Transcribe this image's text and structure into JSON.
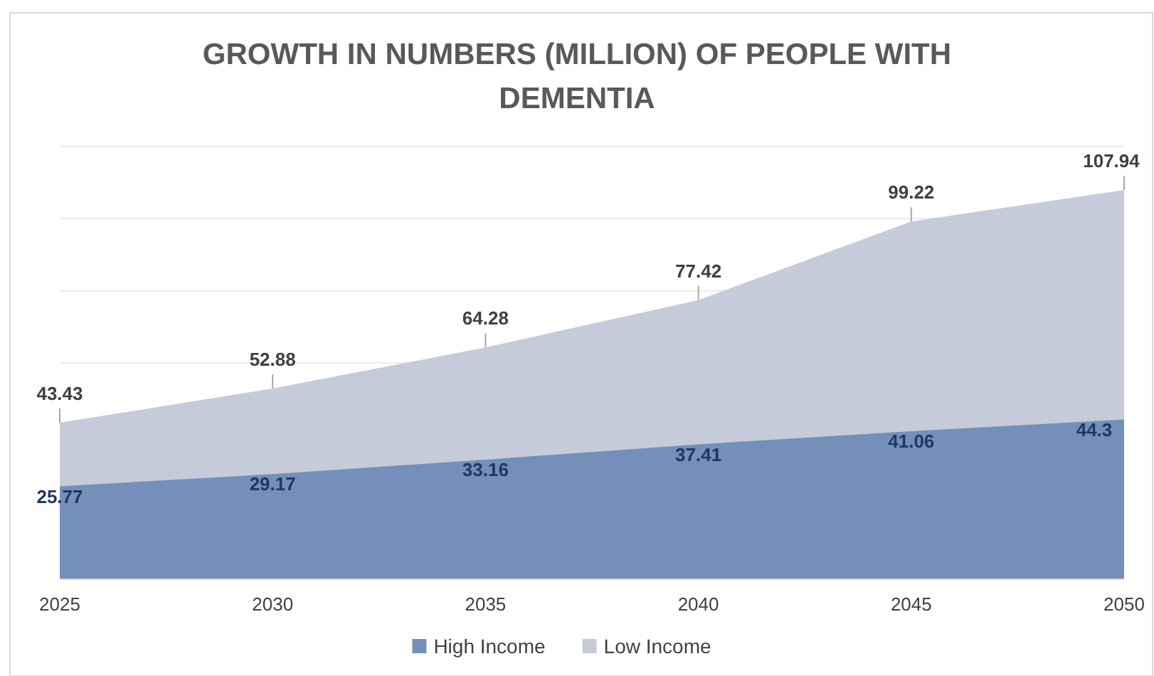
{
  "chart_data": {
    "type": "area",
    "title": "GROWTH IN NUMBERS (MILLION) OF PEOPLE WITH DEMENTIA",
    "categories": [
      "2025",
      "2030",
      "2035",
      "2040",
      "2045",
      "2050"
    ],
    "series": [
      {
        "name": "Low Income",
        "color": "#c5cbd8",
        "values": [
          43.43,
          52.88,
          64.28,
          77.42,
          99.22,
          107.94
        ]
      },
      {
        "name": "High Income",
        "color": "#738fba",
        "values": [
          25.77,
          29.17,
          33.16,
          37.41,
          41.06,
          44.3
        ]
      }
    ],
    "ylim": [
      0,
      120
    ],
    "tick_labels": "x",
    "grid": "y",
    "legend": "bottom",
    "data_labels": true
  }
}
